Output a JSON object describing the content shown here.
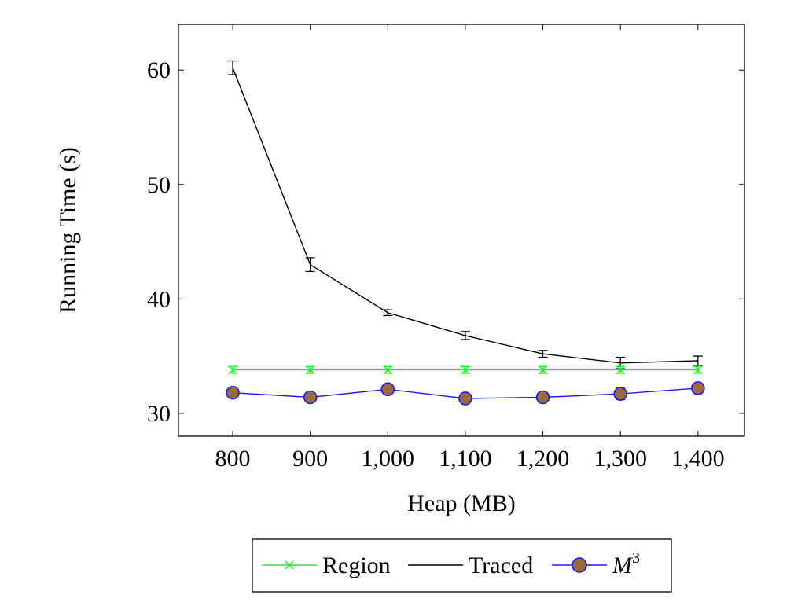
{
  "chart_data": {
    "type": "line",
    "xlabel": "Heap (MB)",
    "ylabel": "Running Time (s)",
    "x": [
      800,
      900,
      1000,
      1100,
      1200,
      1300,
      1400
    ],
    "x_tick_labels": [
      "800",
      "900",
      "1,000",
      "1,100",
      "1,200",
      "1,300",
      "1,400"
    ],
    "xlim": [
      730,
      1460
    ],
    "ylim": [
      28,
      64
    ],
    "y_ticks": [
      30,
      40,
      50,
      60
    ],
    "y_tick_labels": [
      "30",
      "40",
      "50",
      "60"
    ],
    "grid": false,
    "legend_position": "bottom-center",
    "series": [
      {
        "name": "Region",
        "color": "#22ee22",
        "marker": "x",
        "values": [
          33.8,
          33.8,
          33.8,
          33.8,
          33.8,
          33.8,
          33.8
        ],
        "errors": [
          0.3,
          0.3,
          0.3,
          0.3,
          0.3,
          0.3,
          0.3
        ]
      },
      {
        "name": "Traced",
        "color": "#000000",
        "marker": "none",
        "values": [
          60.2,
          43.0,
          38.8,
          36.8,
          35.2,
          34.4,
          34.6
        ],
        "errors": [
          0.6,
          0.6,
          0.25,
          0.35,
          0.3,
          0.5,
          0.4
        ]
      },
      {
        "name": "M",
        "name_superscript": "3",
        "color": "#1a1aff",
        "marker": "circle",
        "marker_fill": "#9b6a3c",
        "values": [
          31.8,
          31.4,
          32.1,
          31.3,
          31.4,
          31.7,
          32.2
        ],
        "errors": [
          0.4,
          0.4,
          0.4,
          0.3,
          0.3,
          0.5,
          0.4
        ]
      }
    ]
  }
}
